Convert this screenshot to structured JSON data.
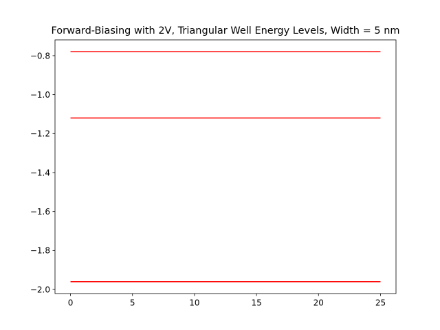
{
  "chart_data": {
    "type": "line",
    "title": "Forward-Biasing with 2V, Triangular Well Energy Levels, Width = 5 nm",
    "xlabel": "",
    "ylabel": "",
    "xlim": [
      -1.25,
      26.25
    ],
    "ylim": [
      -2.021,
      -0.719
    ],
    "x_ticks": [
      0,
      5,
      10,
      15,
      20,
      25
    ],
    "x_tick_labels": [
      "0",
      "5",
      "10",
      "15",
      "20",
      "25"
    ],
    "y_ticks": [
      -2.0,
      -1.8,
      -1.6,
      -1.4,
      -1.2,
      -1.0,
      -0.8
    ],
    "y_tick_labels": [
      "−2.0",
      "−1.8",
      "−1.6",
      "−1.4",
      "−1.2",
      "−1.0",
      "−0.8"
    ],
    "grid": false,
    "legend": "none",
    "series": [
      {
        "x": [
          0,
          25
        ],
        "y": [
          -0.78,
          -0.78
        ],
        "color": "#ff0000"
      },
      {
        "x": [
          0,
          25
        ],
        "y": [
          -1.12,
          -1.12
        ],
        "color": "#ff0000"
      },
      {
        "x": [
          0,
          25
        ],
        "y": [
          -1.96,
          -1.96
        ],
        "color": "#ff0000"
      }
    ]
  }
}
